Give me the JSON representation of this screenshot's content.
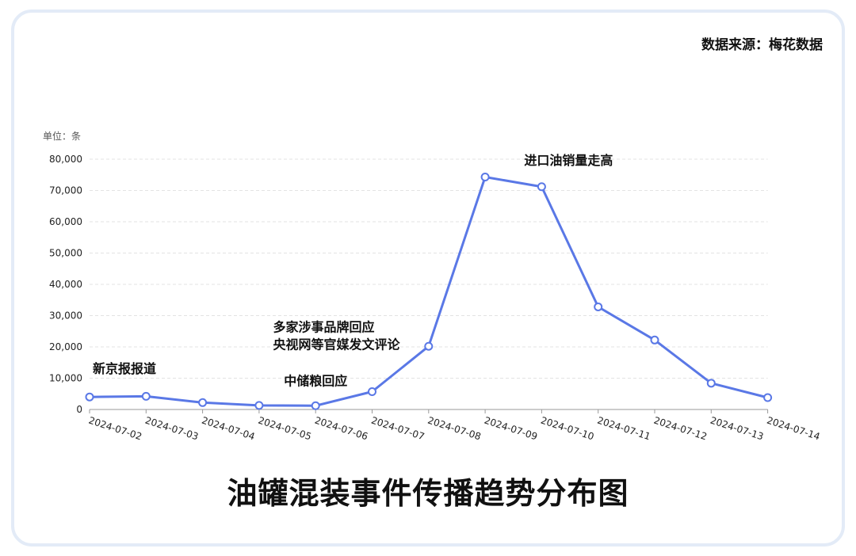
{
  "source": "数据来源：梅花数据",
  "chart_data": {
    "type": "line",
    "title": "油罐混装事件传播趋势分布图",
    "unit_label": "单位：条",
    "ylim": [
      0,
      80000
    ],
    "y_ticks": [
      "80,000",
      "70,000",
      "60,000",
      "50,000",
      "40,000",
      "30,000",
      "20,000",
      "10,000",
      "0"
    ],
    "y_tick_values": [
      80000,
      70000,
      60000,
      50000,
      40000,
      30000,
      20000,
      10000,
      0
    ],
    "categories": [
      "2024-07-02",
      "2024-07-03",
      "2024-07-04",
      "2024-07-05",
      "2024-07-06",
      "2024-07-07",
      "2024-07-08",
      "2024-07-09",
      "2024-07-10",
      "2024-07-11",
      "2024-07-12",
      "2024-07-13",
      "2024-07-14"
    ],
    "series": [
      {
        "values": [
          4000,
          4200,
          2200,
          1300,
          1200,
          5700,
          20200,
          74300,
          71200,
          32800,
          22200,
          8400,
          3800
        ]
      }
    ],
    "grid": true,
    "line_color": "#5a78e6",
    "annotations": [
      {
        "lines": [
          "新京报报道"
        ],
        "category": "2024-07-02"
      },
      {
        "lines": [
          "中储粮回应"
        ],
        "category": "2024-07-06"
      },
      {
        "lines": [
          "多家涉事品牌回应",
          "央视网等官媒发文评论"
        ],
        "category": "2024-07-07"
      },
      {
        "lines": [
          "进口油销量走高"
        ],
        "category": "2024-07-10"
      }
    ]
  }
}
